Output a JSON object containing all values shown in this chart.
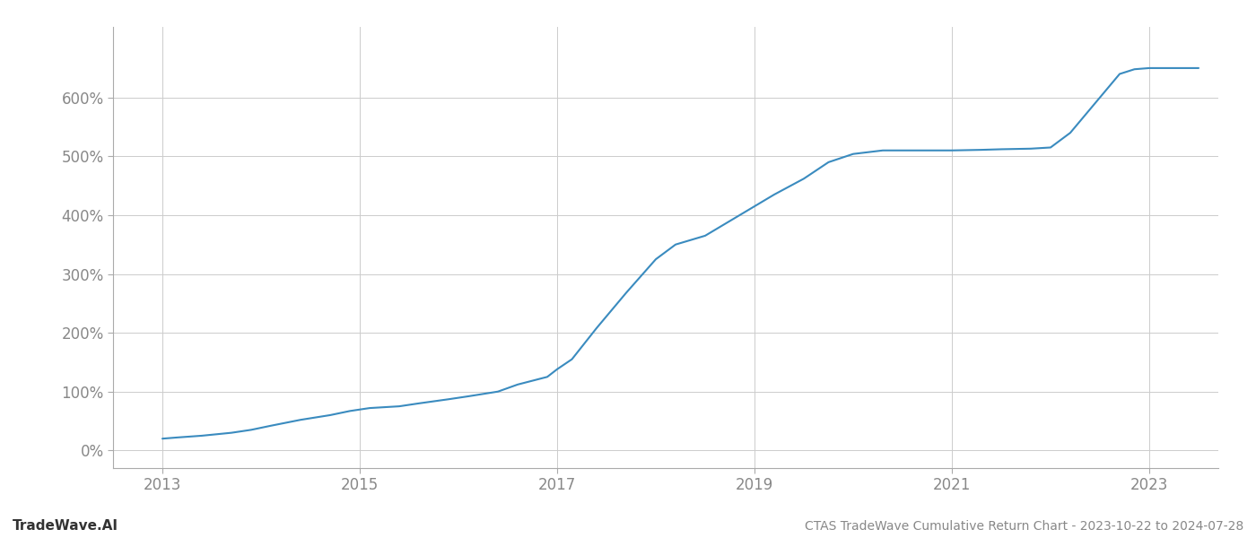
{
  "title": "",
  "xlabel": "",
  "ylabel": "",
  "line_color": "#3a8bbf",
  "line_width": 1.5,
  "background_color": "#ffffff",
  "grid_color": "#cccccc",
  "bottom_left_text": "TradeWave.AI",
  "bottom_right_text": "CTAS TradeWave Cumulative Return Chart - 2023-10-22 to 2024-07-28",
  "xlim": [
    2012.5,
    2023.7
  ],
  "ylim": [
    -30,
    720
  ],
  "yticks": [
    0,
    100,
    200,
    300,
    400,
    500,
    600
  ],
  "xticks": [
    2013,
    2015,
    2017,
    2019,
    2021,
    2023
  ],
  "x": [
    2013.0,
    2013.15,
    2013.4,
    2013.7,
    2013.9,
    2014.1,
    2014.4,
    2014.7,
    2014.9,
    2015.1,
    2015.4,
    2015.6,
    2015.9,
    2016.1,
    2016.4,
    2016.6,
    2016.9,
    2017.0,
    2017.15,
    2017.4,
    2017.7,
    2018.0,
    2018.2,
    2018.5,
    2018.8,
    2019.0,
    2019.2,
    2019.5,
    2019.75,
    2020.0,
    2020.3,
    2020.6,
    2020.8,
    2021.0,
    2021.3,
    2021.5,
    2021.8,
    2022.0,
    2022.2,
    2022.5,
    2022.7,
    2022.85,
    2023.0,
    2023.2,
    2023.5
  ],
  "y": [
    20,
    22,
    25,
    30,
    35,
    42,
    52,
    60,
    67,
    72,
    75,
    80,
    87,
    92,
    100,
    112,
    125,
    138,
    155,
    208,
    268,
    325,
    350,
    365,
    395,
    415,
    435,
    462,
    490,
    504,
    510,
    510,
    510,
    510,
    511,
    512,
    513,
    515,
    540,
    600,
    640,
    648,
    650,
    650,
    650
  ]
}
